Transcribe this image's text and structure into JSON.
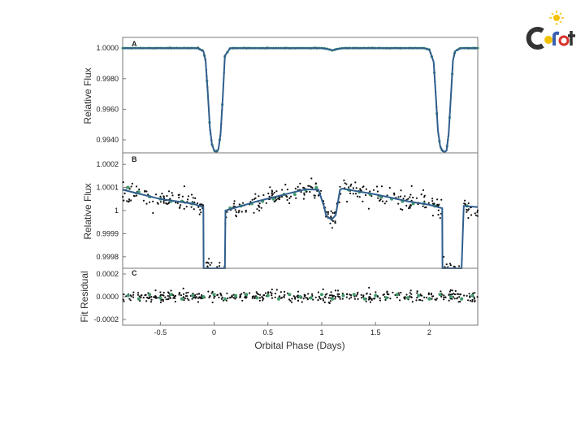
{
  "colors": {
    "model": "#2f5f8e",
    "binned": "#3f9a6a",
    "raw": "#111111",
    "logo_dark": "#333333",
    "logo_yellow": "#f2c200",
    "logo_blue": "#3a5fb0",
    "logo_red": "#d8322a"
  },
  "logo": {
    "text": "CoRoT",
    "icon": "corot-sun-logo"
  },
  "chart_data": [
    {
      "id": "A",
      "type": "line",
      "panel_label": "A",
      "ylabel": "Relative Flux",
      "xlim": [
        -0.85,
        2.45
      ],
      "ylim": [
        0.99315,
        1.0007
      ],
      "yticks": [
        1.0,
        0.998,
        0.996,
        0.994
      ],
      "ytick_labels": [
        "1.0000",
        "0.9980",
        "0.9960",
        "0.9940"
      ],
      "series": [
        {
          "style": "model",
          "x": [
            -0.85,
            -0.15,
            -0.1,
            -0.08,
            -0.06,
            -0.04,
            -0.02,
            0.0,
            0.02,
            0.04,
            0.06,
            0.08,
            0.1,
            0.15,
            1.0,
            1.05,
            1.1,
            1.15,
            1.2,
            1.95,
            2.0,
            2.04,
            2.06,
            2.08,
            2.1,
            2.12,
            2.14,
            2.16,
            2.18,
            2.2,
            2.22,
            2.24,
            2.29,
            2.45
          ],
          "y": [
            1.0,
            1.0,
            0.9998,
            0.9992,
            0.9972,
            0.9948,
            0.9937,
            0.9933,
            0.9932,
            0.9934,
            0.9944,
            0.9968,
            0.9995,
            1.0,
            1.0,
            0.99995,
            0.99985,
            0.99995,
            1.0,
            1.0,
            0.9999,
            0.9991,
            0.9969,
            0.9946,
            0.9936,
            0.9933,
            0.9932,
            0.9933,
            0.9944,
            0.9968,
            0.9992,
            0.9998,
            1.0,
            1.0
          ]
        }
      ]
    },
    {
      "id": "B",
      "type": "scatter",
      "panel_label": "B",
      "ylabel": "Relative Flux",
      "xlim": [
        -0.85,
        2.45
      ],
      "ylim": [
        0.99975,
        1.00025
      ],
      "yticks": [
        1.0002,
        1.0001,
        1.0,
        0.9999,
        0.9998
      ],
      "ytick_labels": [
        "1.0002",
        "1.0001",
        "1",
        "0.9999",
        "0.9998"
      ],
      "series": [
        {
          "style": "model",
          "x": [
            -0.85,
            -0.5,
            -0.2,
            -0.1,
            -0.098,
            -0.09,
            0.08,
            0.1,
            0.105,
            0.4,
            0.7,
            0.85,
            0.97,
            1.02,
            1.04,
            1.09,
            1.11,
            1.13,
            1.17,
            1.19,
            1.5,
            1.8,
            2.0,
            2.12,
            2.122,
            2.13,
            2.3,
            2.32,
            2.45
          ],
          "y": [
            1.00009,
            1.00005,
            1.00003,
            1.000015,
            0.99975,
            0.99975,
            0.99975,
            0.99975,
            1.0,
            1.00004,
            1.000075,
            1.000092,
            1.00009,
            1.00002,
            0.99998,
            0.99996,
            0.99997,
            0.99998,
            1.00009,
            1.000095,
            1.00007,
            1.00004,
            1.000025,
            1.00001,
            0.99975,
            0.99975,
            0.99975,
            1.00002,
            1.000015
          ]
        },
        {
          "style": "binned",
          "x": [
            -0.8,
            -0.7,
            -0.6,
            -0.5,
            -0.4,
            -0.3,
            -0.2,
            0.15,
            0.25,
            0.35,
            0.45,
            0.55,
            0.65,
            0.75,
            0.85,
            0.95,
            1.25,
            1.35,
            1.45,
            1.55,
            1.65,
            1.75,
            1.85,
            1.95,
            2.05,
            2.35
          ],
          "y": [
            1.0001,
            1.00008,
            1.00006,
            1.00005,
            1.00004,
            1.00004,
            1.00003,
            1.00001,
            1.00002,
            1.00003,
            1.00004,
            1.00005,
            1.00007,
            1.00007,
            1.00009,
            1.0001,
            1.00009,
            1.00008,
            1.00007,
            1.00006,
            1.00005,
            1.00004,
            1.00003,
            1.00003,
            1.00002,
            1.00002
          ]
        }
      ]
    },
    {
      "id": "C",
      "type": "scatter",
      "panel_label": "C",
      "ylabel": "Fit Residual",
      "xlabel": "Orbital Phase (Days)",
      "xlim": [
        -0.85,
        2.45
      ],
      "ylim": [
        -0.00025,
        0.00025
      ],
      "yticks": [
        0.0002,
        0.0,
        -0.0002
      ],
      "ytick_labels": [
        "0.0002",
        "0.0000",
        "-0.0002"
      ],
      "xticks": [
        -0.5,
        0,
        0.5,
        1,
        1.5,
        2
      ],
      "xtick_labels": [
        "-0.5",
        "0",
        "0.5",
        "1",
        "1.5",
        "2"
      ],
      "series": [
        {
          "style": "binned",
          "x": [
            -0.8,
            -0.7,
            -0.6,
            -0.5,
            -0.4,
            -0.3,
            -0.2,
            -0.1,
            0.0,
            0.1,
            0.2,
            0.3,
            0.4,
            0.5,
            0.6,
            0.7,
            0.8,
            0.9,
            1.0,
            1.1,
            1.2,
            1.3,
            1.4,
            1.5,
            1.6,
            1.7,
            1.8,
            1.9,
            2.0,
            2.1,
            2.2,
            2.3,
            2.4
          ],
          "y": [
            1e-05,
            -2e-05,
            2e-05,
            -1e-05,
            2e-05,
            -2e-05,
            1e-05,
            0.0,
            2e-05,
            -2e-05,
            1e-05,
            2e-05,
            -1e-05,
            1e-05,
            -2e-05,
            2e-05,
            0.0,
            -1e-05,
            2e-05,
            -2e-05,
            1e-05,
            2e-05,
            -2e-05,
            1e-05,
            -1e-05,
            2e-05,
            -1e-05,
            1e-05,
            -2e-05,
            2e-05,
            0.0,
            -2e-05,
            1e-05
          ]
        }
      ]
    }
  ]
}
